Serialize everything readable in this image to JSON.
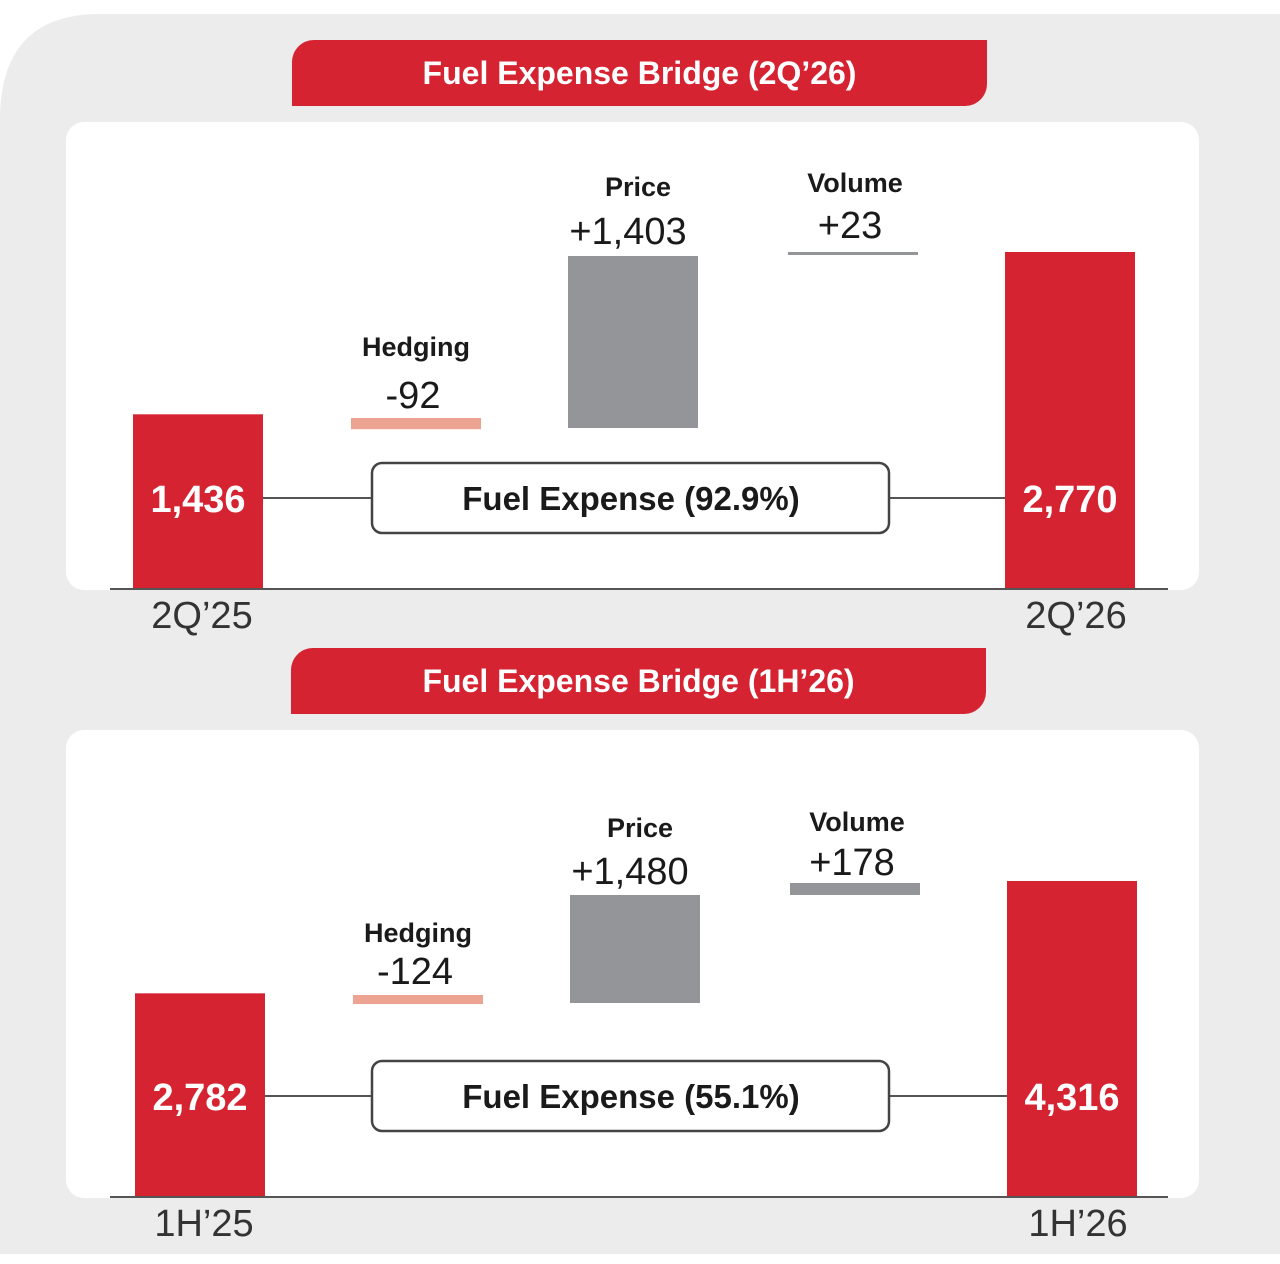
{
  "colors": {
    "end_bar": "#d52331",
    "price_bar": "#939598",
    "hedging_bar": "#eda391",
    "volume_bar": "#939598",
    "background": "#ececec"
  },
  "chart_data": [
    {
      "type": "bar",
      "subtype": "waterfall",
      "title": "Fuel Expense Bridge (2Q’26)",
      "categories": [
        "2Q’25",
        "Hedging",
        "Price",
        "Volume",
        "2Q’26"
      ],
      "values": [
        1436,
        -92,
        1403,
        23,
        2770
      ],
      "value_labels": [
        "1,436",
        "-92",
        "+1,403",
        "+23",
        "2,770"
      ],
      "step_names": [
        "Hedging",
        "Price",
        "Volume"
      ],
      "end_labels": [
        "2Q’25",
        "2Q’26"
      ],
      "center_label": "Fuel Expense (92.9%)"
    },
    {
      "type": "bar",
      "subtype": "waterfall",
      "title": "Fuel Expense Bridge (1H’26)",
      "categories": [
        "1H’25",
        "Hedging",
        "Price",
        "Volume",
        "1H’26"
      ],
      "values": [
        2782,
        -124,
        1480,
        178,
        4316
      ],
      "value_labels": [
        "2,782",
        "-124",
        "+1,480",
        "+178",
        "4,316"
      ],
      "step_names": [
        "Hedging",
        "Price",
        "Volume"
      ],
      "end_labels": [
        "1H’25",
        "1H’26"
      ],
      "center_label": "Fuel Expense (55.1%)"
    }
  ]
}
